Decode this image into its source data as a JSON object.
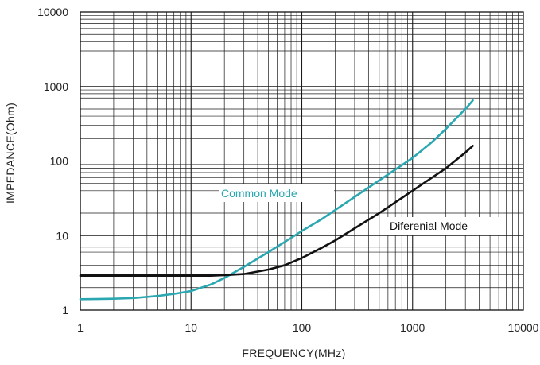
{
  "chart_data": {
    "type": "line",
    "xlabel": "FREQUENCY(MHz)",
    "ylabel": "IMPEDANCE(Ohm)",
    "x_scale": "log",
    "y_scale": "log",
    "xlim": [
      1,
      10000
    ],
    "ylim": [
      1,
      10000
    ],
    "x_ticks": [
      "1",
      "10",
      "100",
      "1000",
      "10000"
    ],
    "y_ticks": [
      "1",
      "10",
      "100",
      "1000",
      "10000"
    ],
    "grid": true,
    "series": [
      {
        "name": "Common Mode",
        "color": "#2aa7b0",
        "x": [
          1,
          2,
          3,
          5,
          7,
          10,
          15,
          20,
          30,
          50,
          70,
          100,
          150,
          200,
          300,
          500,
          700,
          1000,
          1500,
          2000,
          3000,
          3500
        ],
        "y": [
          1.4,
          1.42,
          1.45,
          1.55,
          1.65,
          1.8,
          2.2,
          2.7,
          3.8,
          6.0,
          8.2,
          11.5,
          16.5,
          22,
          33,
          55,
          77,
          110,
          180,
          270,
          500,
          650
        ]
      },
      {
        "name": "Diferenial Mode",
        "color": "#111111",
        "x": [
          1,
          3,
          5,
          10,
          15,
          20,
          30,
          50,
          70,
          100,
          150,
          200,
          300,
          500,
          700,
          1000,
          1500,
          2000,
          3000,
          3500
        ],
        "y": [
          2.9,
          2.9,
          2.9,
          2.9,
          2.9,
          2.95,
          3.05,
          3.5,
          4.0,
          5.0,
          6.8,
          8.6,
          12.5,
          20,
          28,
          40,
          60,
          80,
          130,
          160
        ]
      }
    ]
  }
}
